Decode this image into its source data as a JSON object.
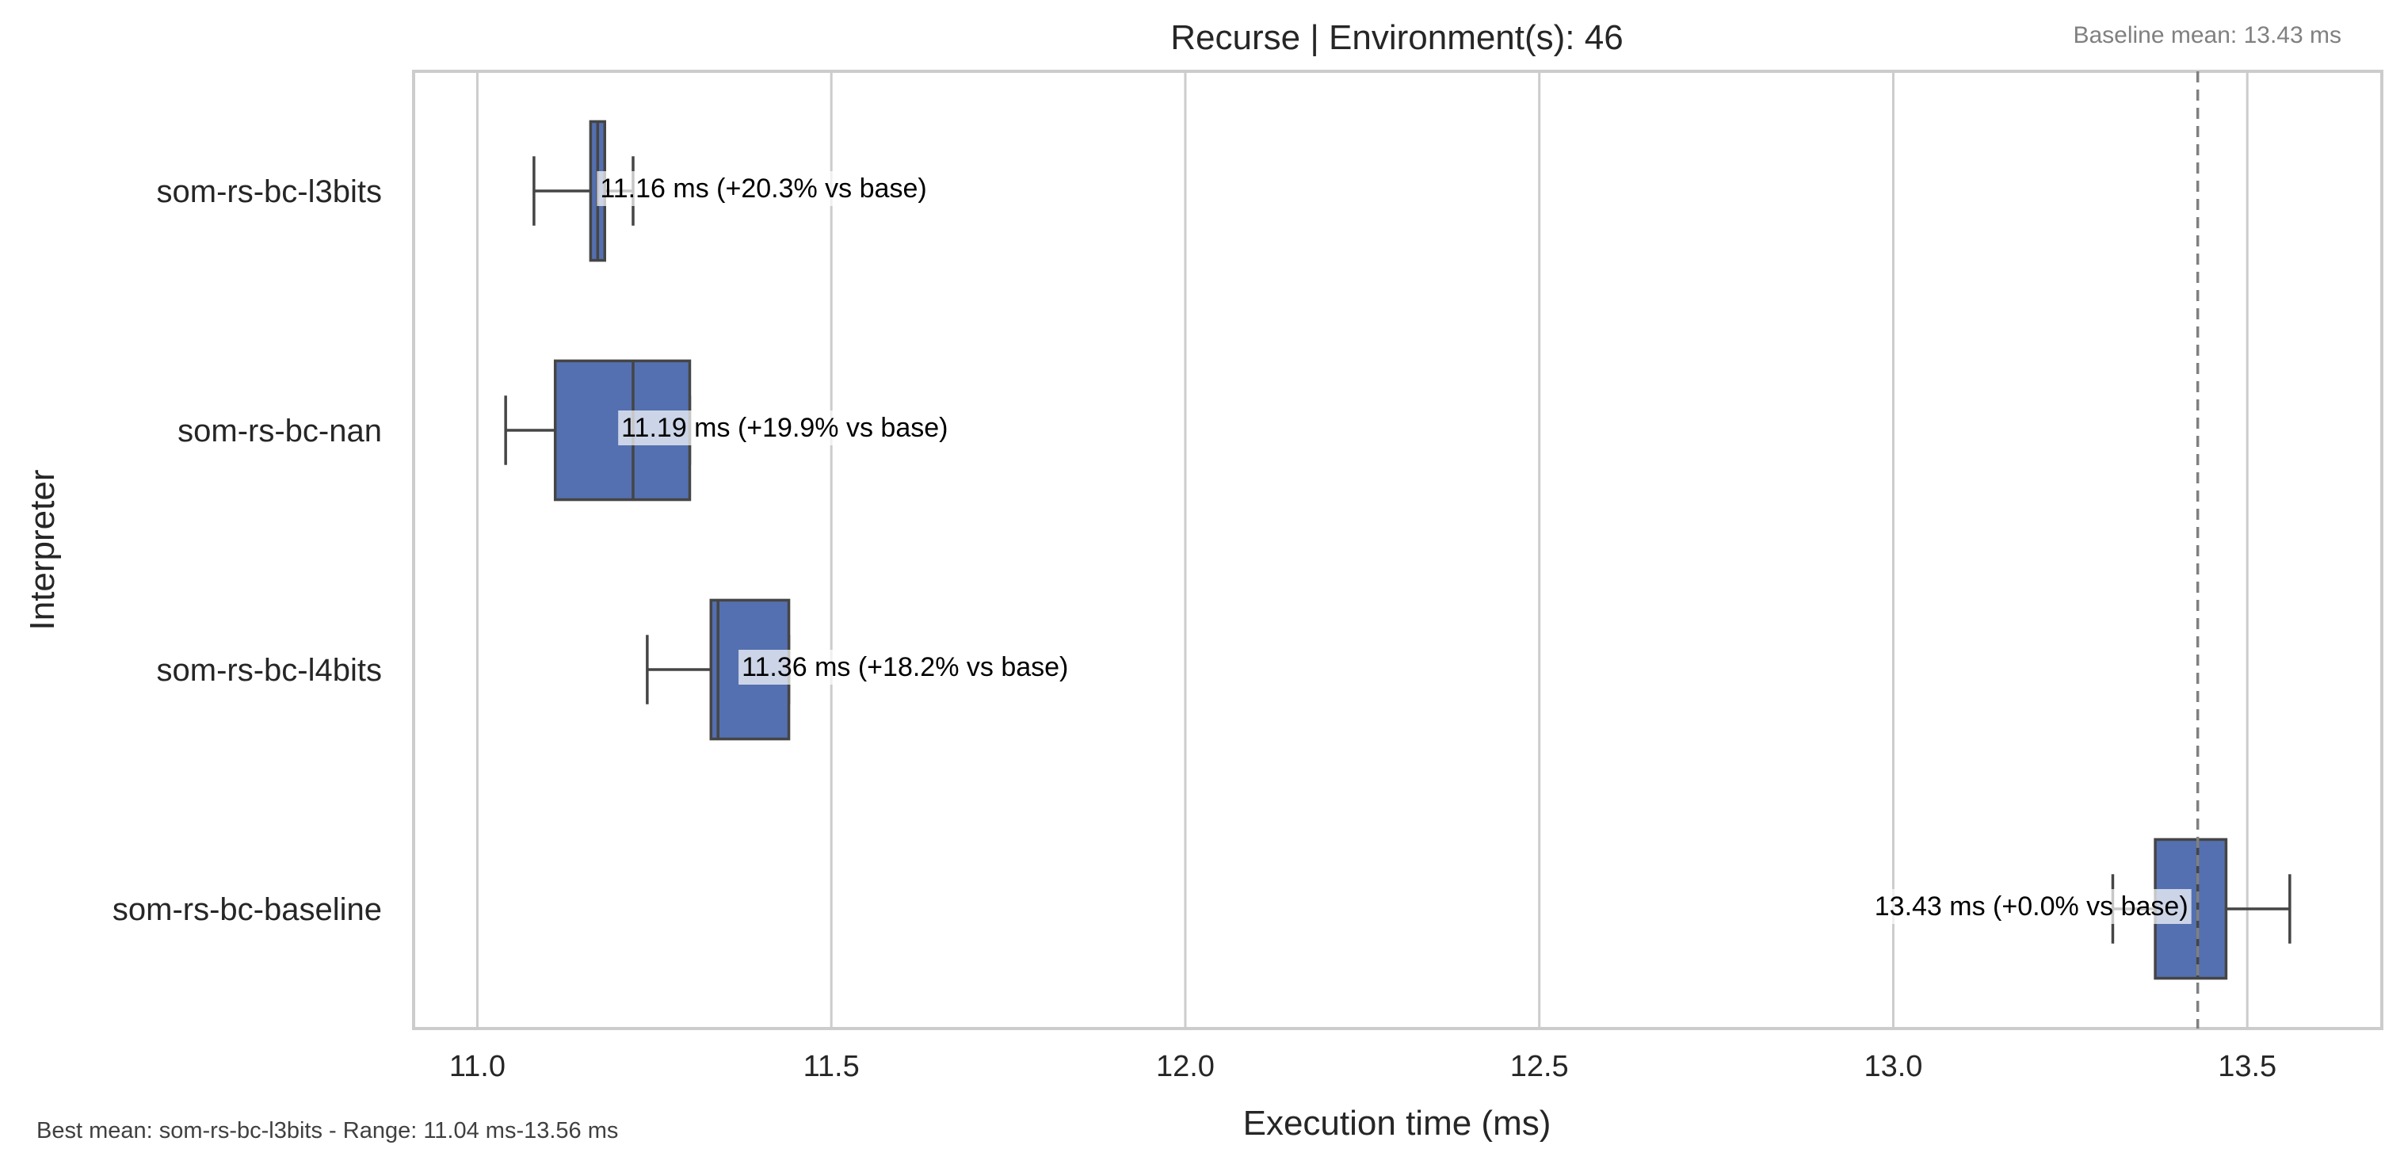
{
  "chart_data": {
    "type": "box",
    "orientation": "horizontal",
    "title": "Recurse | Environment(s): 46",
    "xlabel": "Execution time (ms)",
    "ylabel": "Interpreter",
    "xlim": [
      10.91,
      13.69
    ],
    "xticks": [
      11.0,
      11.5,
      12.0,
      12.5,
      13.0,
      13.5
    ],
    "xtick_labels": [
      "11.0",
      "11.5",
      "12.0",
      "12.5",
      "13.0",
      "13.5"
    ],
    "grid": "vertical",
    "box_color": "#5470b0",
    "baseline": {
      "value": 13.43,
      "label": "Baseline mean: 13.43 ms"
    },
    "categories": [
      "som-rs-bc-l3bits",
      "som-rs-bc-nan",
      "som-rs-bc-l4bits",
      "som-rs-bc-baseline"
    ],
    "boxes": [
      {
        "name": "som-rs-bc-l3bits",
        "whisker_low": 11.08,
        "q1": 11.16,
        "median": 11.17,
        "q3": 11.18,
        "whisker_high": 11.22,
        "mean": 11.16,
        "annotation": "11.16 ms  (+20.3% vs base)",
        "annotation_side": "right"
      },
      {
        "name": "som-rs-bc-nan",
        "whisker_low": 11.04,
        "q1": 11.11,
        "median": 11.22,
        "q3": 11.3,
        "whisker_high": 11.3,
        "mean": 11.19,
        "annotation": "11.19 ms  (+19.9% vs base)",
        "annotation_side": "right"
      },
      {
        "name": "som-rs-bc-l4bits",
        "whisker_low": 11.24,
        "q1": 11.33,
        "median": 11.34,
        "q3": 11.44,
        "whisker_high": 11.44,
        "mean": 11.36,
        "annotation": "11.36 ms  (+18.2% vs base)",
        "annotation_side": "right"
      },
      {
        "name": "som-rs-bc-baseline",
        "whisker_low": 13.31,
        "q1": 13.37,
        "median": 13.43,
        "q3": 13.47,
        "whisker_high": 13.56,
        "mean": 13.43,
        "annotation": "13.43 ms  (+0.0% vs base)",
        "annotation_side": "left"
      }
    ],
    "footer": "Best mean: som-rs-bc-l3bits - Range: 11.04 ms-13.56 ms"
  }
}
